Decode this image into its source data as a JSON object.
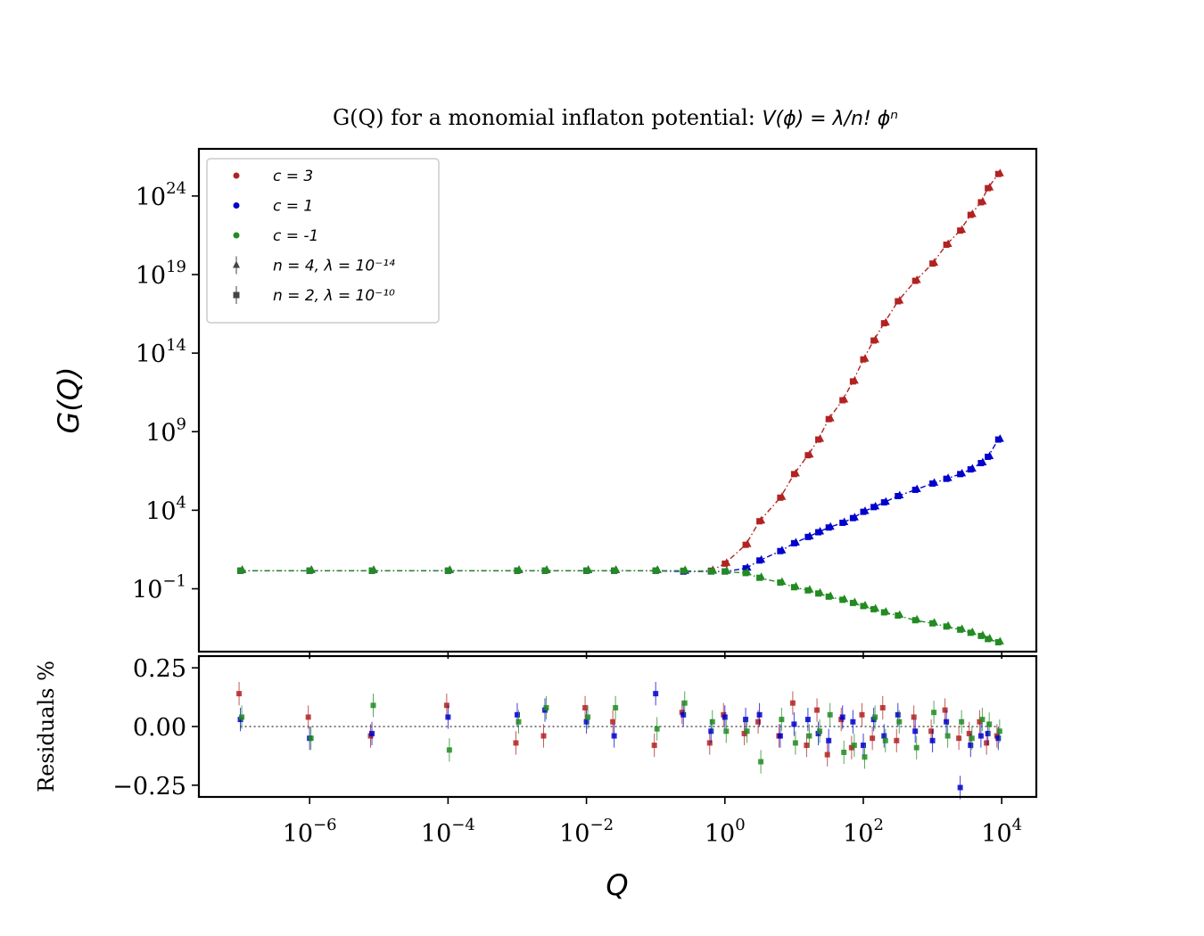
{
  "chart_data": {
    "type": "scatter",
    "title_prefix": "G(Q) for a monomial inflaton potential: ",
    "title_formula": "V(ϕ) = λ/n! ϕⁿ",
    "main": {
      "ylabel": "G(Q)",
      "xscale": "log",
      "yscale": "log",
      "xlim_log10": [
        -7.6,
        4.5
      ],
      "ylim_log10": [
        -5.0,
        27.0
      ],
      "yticks": [
        {
          "base": "10",
          "exp": "24",
          "log10": 24
        },
        {
          "base": "10",
          "exp": "19",
          "log10": 19
        },
        {
          "base": "10",
          "exp": "14",
          "log10": 14
        },
        {
          "base": "10",
          "exp": "9",
          "log10": 9
        },
        {
          "base": "10",
          "exp": "4",
          "log10": 4
        },
        {
          "base": "10",
          "exp": "−1",
          "log10": -1
        }
      ]
    },
    "residuals": {
      "ylabel": "Residuals %",
      "ylim": [
        -0.3,
        0.3
      ],
      "yticks": [
        {
          "label": "0.25",
          "value": 0.25
        },
        {
          "label": "0.00",
          "value": 0.0
        },
        {
          "label": "−0.25",
          "value": -0.25
        }
      ]
    },
    "xlabel": "Q",
    "xticks": [
      {
        "base": "10",
        "exp": "−6",
        "log10": -6
      },
      {
        "base": "10",
        "exp": "−4",
        "log10": -4
      },
      {
        "base": "10",
        "exp": "−2",
        "log10": -2
      },
      {
        "base": "10",
        "exp": "0",
        "log10": 0
      },
      {
        "base": "10",
        "exp": "2",
        "log10": 2
      },
      {
        "base": "10",
        "exp": "4",
        "log10": 4
      }
    ],
    "legend": {
      "location": "upper-left",
      "entries": [
        {
          "label": "c = 3",
          "marker": "dot",
          "color": "#b22222"
        },
        {
          "label": "c = 1",
          "marker": "dot",
          "color": "#0000cd"
        },
        {
          "label": "c = -1",
          "marker": "dot",
          "color": "#228b22"
        },
        {
          "label": "n = 4, λ = 10⁻¹⁴",
          "marker": "triangle",
          "color": "#444444"
        },
        {
          "label": "n = 2, λ = 10⁻¹⁰",
          "marker": "square",
          "color": "#444444"
        }
      ]
    },
    "series": [
      {
        "name": "c = 3",
        "color": "#b22222",
        "log10_Q": [
          -7.0,
          -6.0,
          -5.1,
          -4.0,
          -3.0,
          -2.6,
          -2.0,
          -1.6,
          -1.0,
          -0.6,
          -0.2,
          0.0,
          0.3,
          0.5,
          0.8,
          1.0,
          1.2,
          1.35,
          1.5,
          1.7,
          1.85,
          2.0,
          2.15,
          2.3,
          2.5,
          2.75,
          3.0,
          3.2,
          3.4,
          3.55,
          3.7,
          3.8,
          3.95
        ],
        "log10_G": [
          0.15,
          0.15,
          0.15,
          0.15,
          0.15,
          0.15,
          0.15,
          0.15,
          0.15,
          0.1,
          0.15,
          0.6,
          1.8,
          3.3,
          4.8,
          6.3,
          7.5,
          8.5,
          9.8,
          11.0,
          12.2,
          13.6,
          14.8,
          15.9,
          17.3,
          18.6,
          19.7,
          20.9,
          21.8,
          22.8,
          23.6,
          24.5,
          25.4
        ],
        "residuals": [
          0.14,
          0.04,
          -0.04,
          0.09,
          -0.07,
          -0.04,
          0.08,
          0.02,
          -0.08,
          0.06,
          -0.07,
          0.05,
          -0.03,
          0.02,
          -0.04,
          0.1,
          -0.08,
          0.07,
          -0.12,
          0.03,
          -0.09,
          0.05,
          -0.05,
          0.08,
          -0.06,
          0.04,
          -0.02,
          0.07,
          -0.05,
          -0.03,
          0.02,
          -0.07,
          -0.04
        ]
      },
      {
        "name": "c = 1",
        "color": "#0000cd",
        "log10_Q": [
          -7.0,
          -6.0,
          -5.1,
          -4.0,
          -3.0,
          -2.6,
          -2.0,
          -1.6,
          -1.0,
          -0.6,
          -0.2,
          0.0,
          0.3,
          0.5,
          0.8,
          1.0,
          1.2,
          1.35,
          1.5,
          1.7,
          1.85,
          2.0,
          2.15,
          2.3,
          2.5,
          2.75,
          3.0,
          3.2,
          3.4,
          3.55,
          3.7,
          3.8,
          3.95
        ],
        "log10_G": [
          0.15,
          0.15,
          0.15,
          0.15,
          0.15,
          0.15,
          0.15,
          0.15,
          0.15,
          0.1,
          0.1,
          0.1,
          0.3,
          0.8,
          1.4,
          1.9,
          2.3,
          2.6,
          2.9,
          3.2,
          3.5,
          3.9,
          4.2,
          4.5,
          4.9,
          5.3,
          5.7,
          6.0,
          6.3,
          6.6,
          7.0,
          7.4,
          8.5
        ],
        "residuals": [
          0.03,
          -0.05,
          -0.03,
          0.04,
          0.05,
          0.07,
          0.02,
          -0.04,
          0.14,
          0.05,
          -0.02,
          0.04,
          0.03,
          0.05,
          -0.04,
          0.01,
          0.03,
          -0.03,
          -0.06,
          0.04,
          0.02,
          -0.08,
          0.03,
          -0.04,
          0.05,
          -0.02,
          -0.06,
          0.02,
          -0.26,
          -0.08,
          -0.04,
          -0.03,
          -0.05
        ]
      },
      {
        "name": "c = -1",
        "color": "#228b22",
        "log10_Q": [
          -7.0,
          -6.0,
          -5.1,
          -4.0,
          -3.0,
          -2.6,
          -2.0,
          -1.6,
          -1.0,
          -0.6,
          -0.2,
          0.0,
          0.3,
          0.5,
          0.8,
          1.0,
          1.2,
          1.35,
          1.5,
          1.7,
          1.85,
          2.0,
          2.15,
          2.3,
          2.5,
          2.75,
          3.0,
          3.2,
          3.4,
          3.55,
          3.7,
          3.8,
          3.95
        ],
        "log10_G": [
          0.15,
          0.15,
          0.15,
          0.15,
          0.15,
          0.15,
          0.15,
          0.15,
          0.15,
          0.15,
          0.1,
          0.1,
          0.0,
          -0.3,
          -0.6,
          -0.9,
          -1.1,
          -1.3,
          -1.5,
          -1.7,
          -1.9,
          -2.1,
          -2.3,
          -2.5,
          -2.7,
          -3.0,
          -3.2,
          -3.4,
          -3.6,
          -3.8,
          -4.0,
          -4.2,
          -4.4
        ],
        "residuals": [
          0.04,
          -0.05,
          0.09,
          -0.1,
          0.02,
          0.08,
          0.04,
          0.08,
          -0.01,
          0.1,
          0.02,
          -0.02,
          -0.02,
          -0.15,
          0.03,
          -0.07,
          -0.04,
          -0.02,
          0.05,
          -0.11,
          -0.08,
          -0.13,
          0.04,
          -0.06,
          0.02,
          -0.09,
          0.06,
          -0.04,
          0.02,
          -0.05,
          0.03,
          0.01,
          -0.02
        ]
      }
    ]
  }
}
